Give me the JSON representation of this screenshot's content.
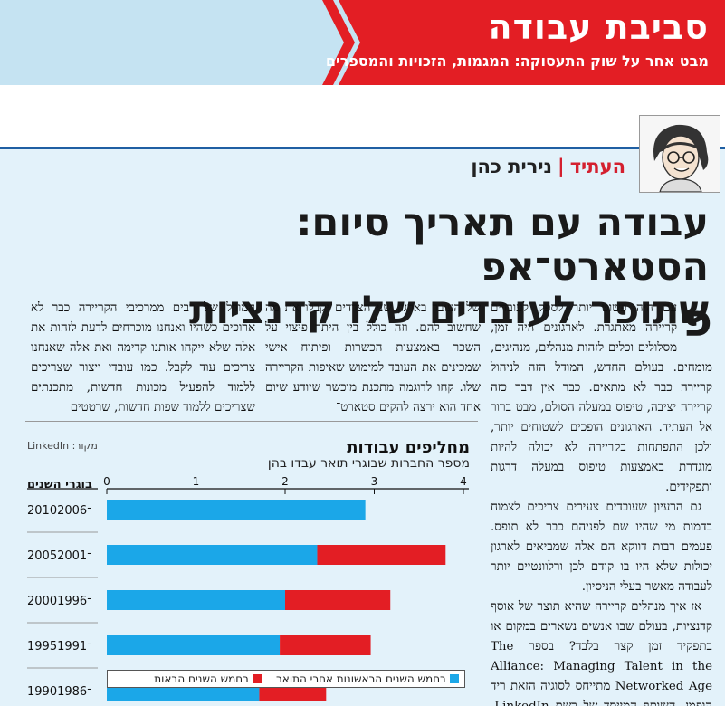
{
  "header": {
    "title": "סביבת עבודה",
    "subtitle": "מבט אחר על שוק התעסוקה: המגמות, הזכויות והמספרים",
    "colors": {
      "band": "#c5e3f2",
      "accent": "#e31e24"
    }
  },
  "byline": {
    "kicker": "העתיד",
    "separator": "|",
    "author": "נירית כהן"
  },
  "headline": {
    "line1": "עבודה עם תאריך סיום: הסטארט־אפ",
    "line2": "שתופר לעובדים שלו קדנציות"
  },
  "article": {
    "dropcap": "פ",
    "col_right": "עם היה פשוט יותר לספק לעובדים קריירה מאתגרת. לארגונים היה זמן, מסלולים וכלים לזהות מנהלים, מנהיגים, מומחים. בעולם החדש, המודל הזה לניהול קריירה כבר לא מתאים. כבר אין דבר כזה קריירה יציבה, טיפוס במעלה הסולם, מבט ברור אל העתיד. הארגונים הופכים לשטוחים יותר, ולכן התפתחות בקריירה לא יכולה להיות מוגדרת באמצעות טיפוס במעלה דרגות ותפקידים.",
    "col_right_p2": "גם הרעיון שעובדים צעירים צריכים לצמוח בדמות מי שהיו שם לפניהם כבר לא תופס. פעמים רבות דווקא הם אלה שמביאים לארגון יכולות שלא היו בו קודם לכן ורלוונטיים יותר לעבודה מאשר בעלי הניסיון.",
    "col_right_p3": "אז איך מנהלים קריירה שהיא תוצר של אוסף קדנציות, בעולם שבו אנשים נשארים במקום או בתפקיד זמן קצר בלבד? בספר The Alliance: Managing Talent in the Networked Age מתייחס לסוגיה הזאת ריד הופמן, השותף המייסד של רשת LinkedIn, כאל חוזה חדש בין ארגון לעובדיו.",
    "col_mid": "של העובד בארגון שני הצדדים יקבלו את מה שחשוב להם. וזה כולל בין היתר פיצוי על השכר באמצעות הכשרות ופיתוח אישי שמכינים את העובד למימוש שאיפות הקריירה שלו. קחו לדוגמה מתכנת מוכשר שיודע שיום אחד הוא ירצה להקים סטארט־",
    "col_left": "המודל של רבים ממרכיבי הקריירה כבר לא ארוכים כשהיו ואנחנו מוכרחים לדעת לזהות את אלה שלא ייקחו אותנו קדימה ואת אלה שאנחנו צריכים עוד לקבל. כמו עובדי ייצור שצריכים ללמוד להפעיל מכונות חדשות, מתכנתים שצריכים ללמוד שפות חדשות, שרטטים"
  },
  "chart": {
    "title": "מחליפים עבודות",
    "subtitle": "מספר החברות שבוגרי תואר עבדו בהן",
    "source": "מקור: LinkedIn",
    "years_header": "בוגרי השנים",
    "legend": [
      {
        "label": "בחמש השנים הראשונות אחרי התואר",
        "color": "#1ba7e8"
      },
      {
        "label": "בחמש השנים הבאות",
        "color": "#e31e24"
      }
    ]
  },
  "chart_data": {
    "type": "bar",
    "orientation": "horizontal-stacked",
    "title": "מחליפים עבודות",
    "subtitle": "מספר החברות שבוגרי תואר עבדו בהן",
    "source": "מקור: LinkedIn",
    "categories": [
      "2010־2006",
      "2005־2001",
      "2000־1996",
      "1995־1991",
      "1990־1986"
    ],
    "series": [
      {
        "name": "בחמש השנים הראשונות אחרי התואר",
        "color": "#1ba7e8",
        "values": [
          2.9,
          2.36,
          2.0,
          1.94,
          1.71
        ]
      },
      {
        "name": "בחמש השנים הבאות",
        "color": "#e31e24",
        "values": [
          0,
          1.44,
          1.18,
          1.02,
          0.75
        ]
      }
    ],
    "xlim": [
      0,
      4
    ],
    "xticks": [
      "0",
      "1",
      "2",
      "3",
      "4"
    ],
    "ylabel": "בוגרי השנים",
    "legend_position": "bottom"
  }
}
